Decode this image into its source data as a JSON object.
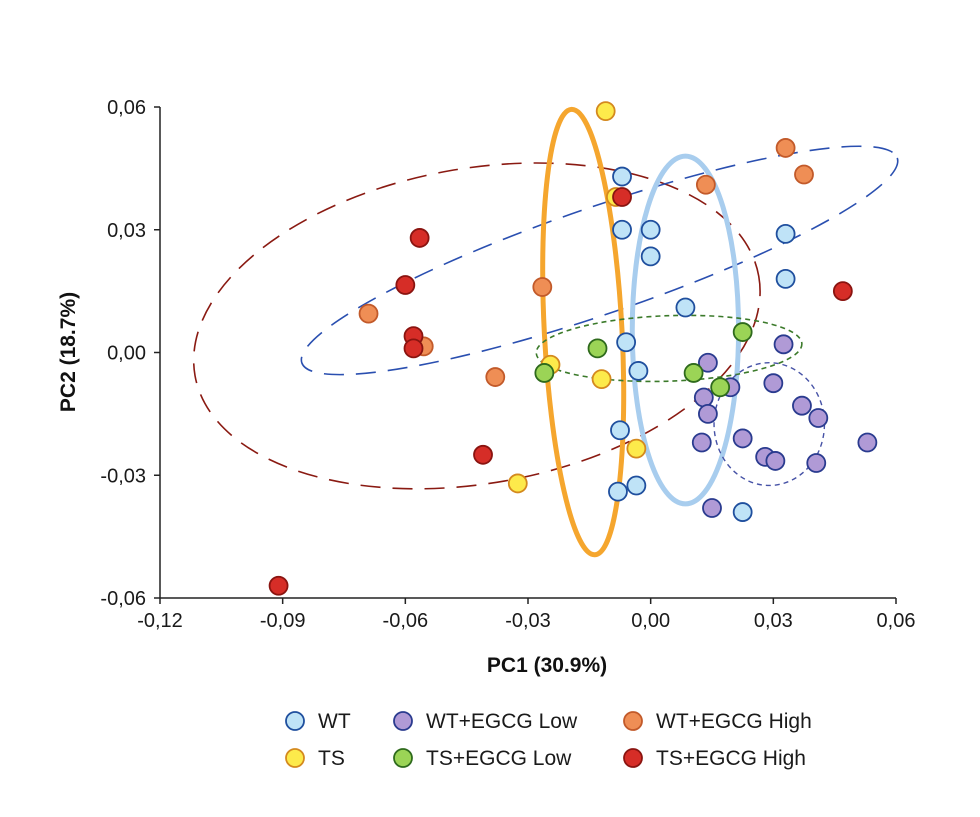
{
  "chart_data": {
    "type": "scatter",
    "title": "",
    "xlabel": "PC1 (30.9%)",
    "ylabel": "PC2 (18.7%)",
    "xlim": [
      -0.12,
      0.06
    ],
    "ylim": [
      -0.06,
      0.06
    ],
    "xticks": [
      -0.12,
      -0.09,
      -0.06,
      -0.03,
      0.0,
      0.03,
      0.06
    ],
    "xtick_labels": [
      "-0,12",
      "-0,09",
      "-0,06",
      "-0,03",
      "0,00",
      "0,03",
      "0,06"
    ],
    "yticks": [
      0.06,
      0.03,
      0.0,
      -0.03,
      -0.06
    ],
    "ytick_labels": [
      "0,06",
      "0,03",
      "0,00",
      "-0,03",
      "-0,06"
    ],
    "grid": false,
    "legend_position": "bottom",
    "series": [
      {
        "name": "WT",
        "key": "wt",
        "color": "#bfe3f7",
        "edge": "#1f4f9e",
        "points": [
          [
            -0.007,
            0.043
          ],
          [
            -0.007,
            0.03
          ],
          [
            0.0,
            0.03
          ],
          [
            0.0,
            0.0235
          ],
          [
            0.0085,
            0.011
          ],
          [
            -0.006,
            0.0025
          ],
          [
            -0.003,
            -0.0045
          ],
          [
            0.033,
            0.029
          ],
          [
            0.033,
            0.018
          ],
          [
            -0.0075,
            -0.019
          ],
          [
            -0.008,
            -0.034
          ],
          [
            -0.0035,
            -0.0325
          ],
          [
            0.0225,
            -0.039
          ]
        ]
      },
      {
        "name": "TS",
        "key": "ts",
        "color": "#fdea4b",
        "edge": "#d4891e",
        "points": [
          [
            -0.011,
            0.059
          ],
          [
            -0.0085,
            0.038
          ],
          [
            -0.0245,
            -0.003
          ],
          [
            -0.012,
            -0.0065
          ],
          [
            -0.0035,
            -0.0235
          ],
          [
            -0.0325,
            -0.032
          ]
        ]
      },
      {
        "name": "WT+EGCG Low",
        "key": "wtl",
        "color": "#b09ad6",
        "edge": "#2a3b8f",
        "points": [
          [
            0.014,
            -0.0025
          ],
          [
            0.013,
            -0.011
          ],
          [
            0.014,
            -0.015
          ],
          [
            0.0195,
            -0.0085
          ],
          [
            0.03,
            -0.0075
          ],
          [
            0.037,
            -0.013
          ],
          [
            0.041,
            -0.016
          ],
          [
            0.0325,
            0.002
          ],
          [
            0.0125,
            -0.022
          ],
          [
            0.0225,
            -0.021
          ],
          [
            0.028,
            -0.0255
          ],
          [
            0.0305,
            -0.0265
          ],
          [
            0.0405,
            -0.027
          ],
          [
            0.053,
            -0.022
          ],
          [
            0.015,
            -0.038
          ]
        ]
      },
      {
        "name": "TS+EGCG Low",
        "key": "tsl",
        "color": "#9bd456",
        "edge": "#2e6a1c",
        "points": [
          [
            0.0225,
            0.005
          ],
          [
            -0.013,
            0.001
          ],
          [
            -0.026,
            -0.005
          ],
          [
            0.0105,
            -0.005
          ],
          [
            0.017,
            -0.0085
          ]
        ]
      },
      {
        "name": "WT+EGCG High",
        "key": "wth",
        "color": "#ef8e55",
        "edge": "#c25a2a",
        "points": [
          [
            0.033,
            0.05
          ],
          [
            0.0375,
            0.0435
          ],
          [
            0.0135,
            0.041
          ],
          [
            -0.0265,
            0.016
          ],
          [
            -0.069,
            0.0095
          ],
          [
            -0.0555,
            0.0015
          ],
          [
            -0.038,
            -0.006
          ]
        ]
      },
      {
        "name": "TS+EGCG High",
        "key": "tsh",
        "color": "#d62d27",
        "edge": "#8a1410",
        "points": [
          [
            -0.007,
            0.038
          ],
          [
            -0.0565,
            0.028
          ],
          [
            -0.06,
            0.0165
          ],
          [
            -0.058,
            0.004
          ],
          [
            -0.058,
            0.001
          ],
          [
            0.047,
            0.015
          ],
          [
            -0.041,
            -0.025
          ],
          [
            -0.091,
            -0.057
          ]
        ]
      }
    ],
    "ellipses": [
      {
        "key": "tsh",
        "cx": -0.0425,
        "cy": 0.0065,
        "rx": 0.07,
        "ry": 0.0385,
        "angle": 10,
        "color": "#8a1a12",
        "width": 1.6,
        "dash": "20 12"
      },
      {
        "key": "wth",
        "cx": -0.0125,
        "cy": 0.0225,
        "rx": 0.077,
        "ry": 0.013,
        "angle": 19,
        "color": "#2a4fb0",
        "width": 1.6,
        "dash": "20 12"
      },
      {
        "key": "ts",
        "cx": -0.0165,
        "cy": 0.005,
        "rx": 0.0095,
        "ry": 0.0545,
        "angle": 3,
        "color": "#f5a62e",
        "width": 5,
        "dash": ""
      },
      {
        "key": "wt",
        "cx": 0.0085,
        "cy": 0.0055,
        "rx": 0.013,
        "ry": 0.0425,
        "angle": 0,
        "color": "#a8cdee",
        "width": 5,
        "dash": ""
      },
      {
        "key": "tsl",
        "cx": 0.0045,
        "cy": 0.001,
        "rx": 0.0325,
        "ry": 0.008,
        "angle": 2,
        "color": "#3b7a2a",
        "width": 1.6,
        "dash": "5 4"
      },
      {
        "key": "wtl",
        "cx": 0.029,
        "cy": -0.0175,
        "rx": 0.0135,
        "ry": 0.015,
        "angle": 0,
        "color": "#4652a6",
        "width": 1.4,
        "dash": "5 4"
      }
    ]
  }
}
